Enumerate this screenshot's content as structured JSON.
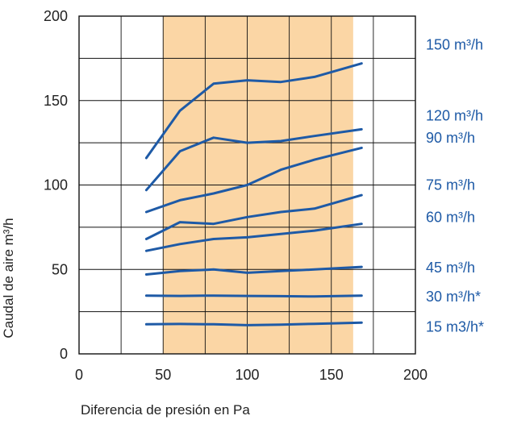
{
  "chart_data": {
    "type": "line",
    "title": "",
    "xlabel": "Diferencia de presión en Pa",
    "ylabel": "Caudal de aire m³/h",
    "xlim": [
      0,
      200
    ],
    "ylim": [
      0,
      200
    ],
    "xticks": [
      0,
      50,
      100,
      150,
      200
    ],
    "yticks": [
      0,
      50,
      100,
      150,
      200
    ],
    "grid": true,
    "grid_x": [
      0,
      25,
      50,
      75,
      100,
      125,
      150,
      175,
      200
    ],
    "grid_y": [
      0,
      25,
      50,
      75,
      100,
      125,
      150,
      175,
      200
    ],
    "highlight_band": {
      "x": [
        50,
        163
      ],
      "color": "#fbd6a5"
    },
    "line_color": "#1e5aa6",
    "series": [
      {
        "name": "150 m³/h",
        "x": [
          40,
          60,
          80,
          100,
          120,
          140,
          168
        ],
        "values": [
          116,
          144,
          160,
          162,
          161,
          164,
          172
        ]
      },
      {
        "name": "120 m³/h",
        "x": [
          40,
          60,
          80,
          100,
          120,
          140,
          168
        ],
        "values": [
          97,
          120,
          128,
          125,
          126,
          129,
          133
        ]
      },
      {
        "name": "90 m³/h",
        "x": [
          40,
          60,
          80,
          100,
          120,
          140,
          168
        ],
        "values": [
          84,
          91,
          95,
          100,
          109,
          115,
          122
        ]
      },
      {
        "name": "75 m³/h",
        "x": [
          40,
          60,
          80,
          100,
          120,
          140,
          168
        ],
        "values": [
          68,
          78,
          77,
          81,
          84,
          86,
          94
        ]
      },
      {
        "name": "60 m³/h",
        "x": [
          40,
          60,
          80,
          100,
          120,
          140,
          168
        ],
        "values": [
          61,
          65,
          68,
          69,
          71,
          73,
          77
        ]
      },
      {
        "name": "45 m³/h",
        "x": [
          40,
          60,
          80,
          100,
          120,
          140,
          168
        ],
        "values": [
          47,
          49,
          50,
          48,
          49,
          50,
          51.5
        ]
      },
      {
        "name": "30 m³/h*",
        "x": [
          40,
          60,
          80,
          100,
          120,
          140,
          168
        ],
        "values": [
          34.5,
          34.3,
          34.5,
          34.3,
          34.2,
          34,
          34.5
        ]
      },
      {
        "name": "15 m3/h*",
        "x": [
          40,
          60,
          80,
          100,
          120,
          140,
          168
        ],
        "values": [
          17.5,
          17.7,
          17.5,
          17,
          17.3,
          17.8,
          18.5
        ]
      }
    ],
    "series_label_values": [
      183,
      141,
      128,
      100,
      81,
      51,
      34,
      16
    ]
  }
}
